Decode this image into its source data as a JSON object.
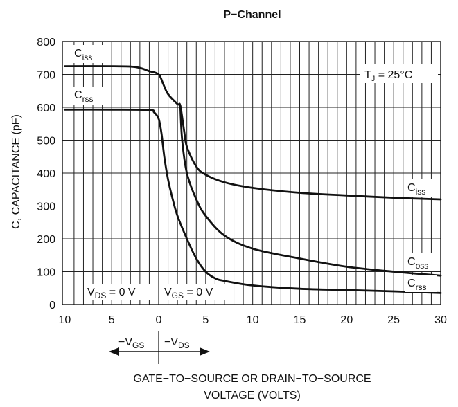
{
  "chart_data": {
    "type": "line",
    "title": "P−Channel",
    "xlabel_line1": "GATE−TO−SOURCE OR DRAIN−TO−SOURCE",
    "xlabel_line2": "VOLTAGE (VOLTS)",
    "ylabel": "C, CAPACITANCE (pF)",
    "ylim": [
      0,
      800
    ],
    "xlim_vgs": [
      10,
      0
    ],
    "xlim_vds": [
      0,
      30
    ],
    "grid": true,
    "x_ticks": [
      "10",
      "5",
      "0",
      "5",
      "10",
      "15",
      "20",
      "25",
      "30"
    ],
    "y_ticks": [
      "0",
      "100",
      "200",
      "300",
      "400",
      "500",
      "600",
      "700",
      "800"
    ],
    "annotations": {
      "tj": "T",
      "tj_sub": "J",
      "tj_rest": " = 25°C",
      "vds_zero_main": "V",
      "vds_zero_sub": "DS",
      "vds_zero_rest": " = 0 V",
      "vgs_zero_main": "V",
      "vgs_zero_sub": "GS",
      "vgs_zero_rest": " = 0 V",
      "arrow_left_main": "−V",
      "arrow_left_sub": "GS",
      "arrow_right_main": "−V",
      "arrow_right_sub": "DS"
    },
    "series": [
      {
        "name_main": "C",
        "name_sub": "iss",
        "label_position": "left-start and right-end",
        "vgs_side": [
          [
            10,
            725
          ],
          [
            5,
            725
          ],
          [
            3,
            724
          ],
          [
            2,
            720
          ],
          [
            1,
            710
          ],
          [
            0,
            700
          ]
        ],
        "vds_side": [
          [
            0,
            700
          ],
          [
            0.5,
            670
          ],
          [
            1,
            640
          ],
          [
            2,
            610
          ],
          [
            2.3,
            605
          ],
          [
            2.7,
            530
          ],
          [
            3,
            480
          ],
          [
            4,
            420
          ],
          [
            5,
            395
          ],
          [
            7,
            372
          ],
          [
            10,
            355
          ],
          [
            15,
            340
          ],
          [
            20,
            332
          ],
          [
            25,
            325
          ],
          [
            30,
            320
          ]
        ]
      },
      {
        "name_main": "C",
        "name_sub": "oss",
        "label_position": "right-end",
        "vds_side": [
          [
            2.3,
            605
          ],
          [
            2.5,
            500
          ],
          [
            3,
            400
          ],
          [
            4,
            320
          ],
          [
            5,
            270
          ],
          [
            7,
            210
          ],
          [
            10,
            170
          ],
          [
            15,
            140
          ],
          [
            20,
            115
          ],
          [
            25,
            100
          ],
          [
            30,
            88
          ]
        ]
      },
      {
        "name_main": "C",
        "name_sub": "rss",
        "label_position": "left-start and right-end",
        "vgs_side": [
          [
            10,
            593
          ],
          [
            5,
            593
          ],
          [
            1,
            592
          ],
          [
            0.5,
            585
          ],
          [
            0,
            565
          ]
        ],
        "vds_side": [
          [
            0,
            565
          ],
          [
            0.3,
            520
          ],
          [
            0.6,
            450
          ],
          [
            1,
            380
          ],
          [
            1.5,
            320
          ],
          [
            2,
            270
          ],
          [
            3,
            200
          ],
          [
            4,
            140
          ],
          [
            5,
            100
          ],
          [
            6,
            80
          ],
          [
            7,
            72
          ],
          [
            10,
            58
          ],
          [
            15,
            48
          ],
          [
            20,
            44
          ],
          [
            25,
            40
          ],
          [
            30,
            35
          ]
        ]
      }
    ]
  }
}
